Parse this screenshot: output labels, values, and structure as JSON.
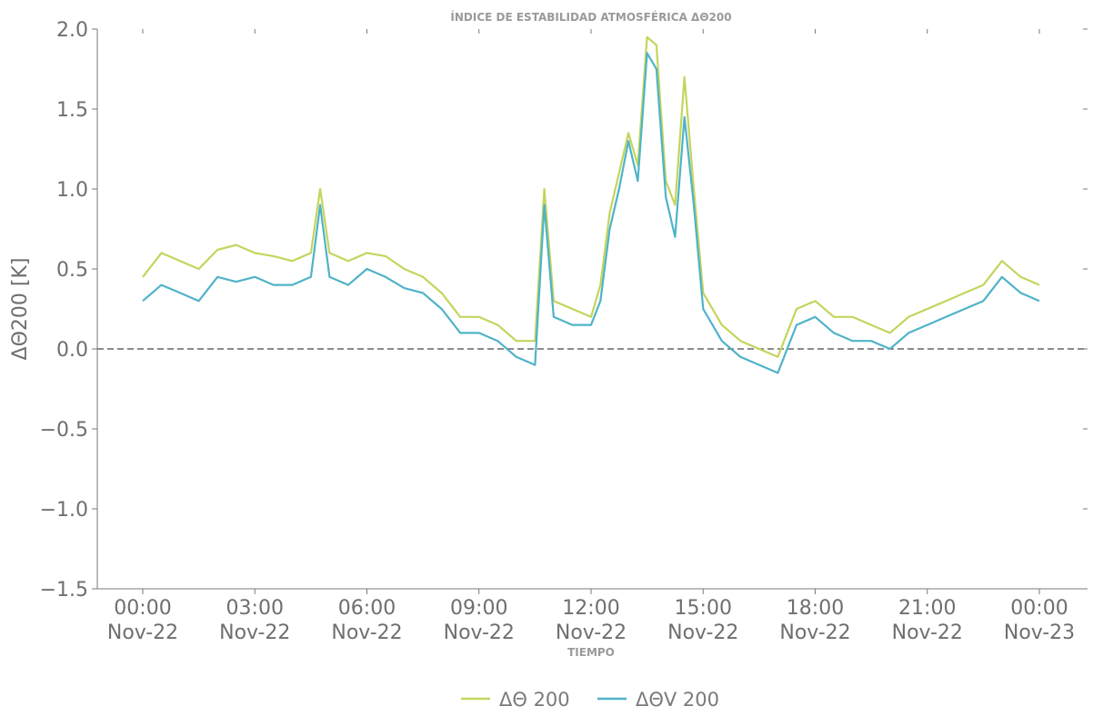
{
  "chart_data": {
    "type": "line",
    "title": "ÍNDICE DE ESTABILIDAD ATMOSFÉRICA ΔΘ200",
    "xlabel": "TIEMPO",
    "ylabel": "ΔΘ200 [K]",
    "ylim": [
      -1.5,
      2.0
    ],
    "y_ticks": [
      "−1.5",
      "−1.0",
      "−0.5",
      "0.0",
      "0.5",
      "1.0",
      "1.5",
      "2.0"
    ],
    "x_ticks": [
      {
        "time": "00:00",
        "date": "Nov-22"
      },
      {
        "time": "03:00",
        "date": "Nov-22"
      },
      {
        "time": "06:00",
        "date": "Nov-22"
      },
      {
        "time": "09:00",
        "date": "Nov-22"
      },
      {
        "time": "12:00",
        "date": "Nov-22"
      },
      {
        "time": "15:00",
        "date": "Nov-22"
      },
      {
        "time": "18:00",
        "date": "Nov-22"
      },
      {
        "time": "21:00",
        "date": "Nov-22"
      },
      {
        "time": "00:00",
        "date": "Nov-23"
      }
    ],
    "xlim": [
      "2022-11-22 00:00",
      "2022-11-23 00:00"
    ],
    "reference_line": 0.0,
    "legend": "bottom-center",
    "series": [
      {
        "name": "ΔΘ 200",
        "color": "#c5d45c",
        "x": [
          "00:00",
          "00:30",
          "01:00",
          "01:30",
          "02:00",
          "02:30",
          "03:00",
          "03:30",
          "04:00",
          "04:30",
          "04:45",
          "05:00",
          "05:30",
          "06:00",
          "06:30",
          "07:00",
          "07:30",
          "08:00",
          "08:30",
          "09:00",
          "09:30",
          "10:00",
          "10:30",
          "10:45",
          "11:00",
          "11:30",
          "12:00",
          "12:15",
          "12:30",
          "12:45",
          "13:00",
          "13:15",
          "13:30",
          "13:45",
          "14:00",
          "14:15",
          "14:30",
          "14:45",
          "15:00",
          "15:30",
          "16:00",
          "16:30",
          "17:00",
          "17:30",
          "18:00",
          "18:30",
          "19:00",
          "19:30",
          "20:00",
          "20:30",
          "21:00",
          "21:30",
          "22:00",
          "22:30",
          "23:00",
          "23:30",
          "24:00"
        ],
        "y": [
          0.45,
          0.6,
          0.55,
          0.5,
          0.62,
          0.65,
          0.6,
          0.58,
          0.55,
          0.6,
          1.0,
          0.6,
          0.55,
          0.6,
          0.58,
          0.5,
          0.45,
          0.35,
          0.2,
          0.2,
          0.15,
          0.05,
          0.05,
          1.0,
          0.3,
          0.25,
          0.2,
          0.4,
          0.85,
          1.1,
          1.35,
          1.15,
          1.95,
          1.9,
          1.05,
          0.9,
          1.7,
          1.0,
          0.35,
          0.15,
          0.05,
          0.0,
          -0.05,
          0.25,
          0.3,
          0.2,
          0.2,
          0.15,
          0.1,
          0.2,
          0.25,
          0.3,
          0.35,
          0.4,
          0.55,
          0.45,
          0.4
        ]
      },
      {
        "name": "ΔΘV 200",
        "color": "#4fb3c8",
        "x": [
          "00:00",
          "00:30",
          "01:00",
          "01:30",
          "02:00",
          "02:30",
          "03:00",
          "03:30",
          "04:00",
          "04:30",
          "04:45",
          "05:00",
          "05:30",
          "06:00",
          "06:30",
          "07:00",
          "07:30",
          "08:00",
          "08:30",
          "09:00",
          "09:30",
          "10:00",
          "10:30",
          "10:45",
          "11:00",
          "11:30",
          "12:00",
          "12:15",
          "12:30",
          "12:45",
          "13:00",
          "13:15",
          "13:30",
          "13:45",
          "14:00",
          "14:15",
          "14:30",
          "14:45",
          "15:00",
          "15:30",
          "16:00",
          "16:30",
          "17:00",
          "17:30",
          "18:00",
          "18:30",
          "19:00",
          "19:30",
          "20:00",
          "20:30",
          "21:00",
          "21:30",
          "22:00",
          "22:30",
          "23:00",
          "23:30",
          "24:00"
        ],
        "y": [
          0.3,
          0.4,
          0.35,
          0.3,
          0.45,
          0.42,
          0.45,
          0.4,
          0.4,
          0.45,
          0.9,
          0.45,
          0.4,
          0.5,
          0.45,
          0.38,
          0.35,
          0.25,
          0.1,
          0.1,
          0.05,
          -0.05,
          -0.1,
          0.9,
          0.2,
          0.15,
          0.15,
          0.3,
          0.75,
          1.0,
          1.3,
          1.05,
          1.85,
          1.75,
          0.95,
          0.7,
          1.45,
          0.9,
          0.25,
          0.05,
          -0.05,
          -0.1,
          -0.15,
          0.15,
          0.2,
          0.1,
          0.05,
          0.05,
          0.0,
          0.1,
          0.15,
          0.2,
          0.25,
          0.3,
          0.45,
          0.35,
          0.3
        ]
      }
    ]
  }
}
